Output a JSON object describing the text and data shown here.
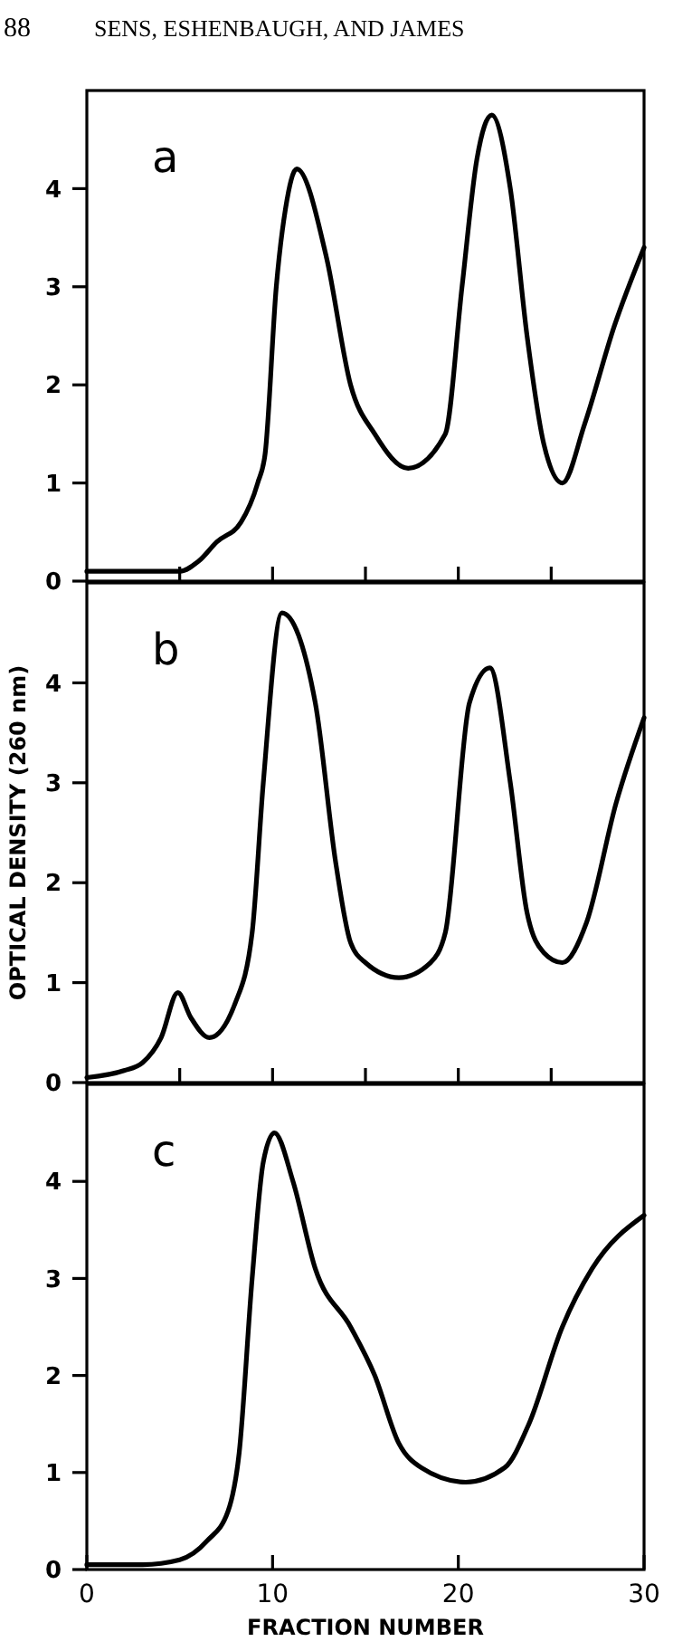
{
  "chart_data": [
    {
      "type": "line",
      "annotations": [
        "88",
        "SENS, ESHENBAUGH, AND JAMES",
        "a"
      ],
      "x": [
        0,
        3,
        5,
        6,
        7,
        8.3,
        9.2,
        9.6,
        10.2,
        10.7,
        11.3,
        12.9,
        14.2,
        15.5,
        17.3,
        19.3,
        20.2,
        21,
        21.8,
        22.8,
        23.7,
        24.6,
        25.6,
        26.8,
        28.4,
        30
      ],
      "values": [
        0.1,
        0.1,
        0.1,
        0.2,
        0.4,
        0.6,
        1,
        1.3,
        3,
        3.8,
        4.2,
        3.3,
        2,
        1.5,
        1.15,
        1.5,
        3,
        4.3,
        4.75,
        4,
        2.5,
        1.4,
        1,
        1.6,
        2.6,
        3.4
      ],
      "color": "#000000",
      "xlim": [
        0,
        30
      ],
      "xticks": [
        {
          "value": 5,
          "label": null
        },
        {
          "value": 10,
          "label": null
        },
        {
          "value": 15,
          "label": null
        },
        {
          "value": 20,
          "label": null
        },
        {
          "value": 25,
          "label": null
        }
      ],
      "ylim": [
        0,
        5
      ],
      "yticks": [
        0,
        1,
        2,
        3,
        4
      ],
      "tick_labels": "y"
    },
    {
      "type": "line",
      "ylabel": "OPTICAL DENSITY (260 nm)",
      "annotations": [
        "b"
      ],
      "x": [
        0,
        2,
        3,
        4,
        4.9,
        5.6,
        6.6,
        8,
        8.9,
        9.5,
        10.5,
        12.3,
        13.4,
        14.2,
        15,
        16.8,
        18.5,
        19.3,
        20.6,
        21.7,
        22.8,
        23.7,
        24.6,
        25.6,
        26.9,
        28.5,
        30
      ],
      "values": [
        0.05,
        0.12,
        0.2,
        0.45,
        0.9,
        0.65,
        0.45,
        0.8,
        1.5,
        3,
        4.7,
        3.8,
        2.2,
        1.4,
        1.2,
        1.05,
        1.2,
        1.5,
        3.8,
        4.15,
        3,
        1.7,
        1.3,
        1.2,
        1.6,
        2.8,
        3.65
      ],
      "color": "#000000",
      "xlim": [
        0,
        30
      ],
      "xticks": [
        {
          "value": 5,
          "label": null
        },
        {
          "value": 10,
          "label": null
        },
        {
          "value": 15,
          "label": null
        },
        {
          "value": 20,
          "label": null
        },
        {
          "value": 25,
          "label": null
        }
      ],
      "ylim": [
        0,
        5
      ],
      "yticks": [
        0,
        1,
        2,
        3,
        4
      ],
      "tick_labels": "y"
    },
    {
      "type": "line",
      "xlabel": "FRACTION NUMBER",
      "annotations": [
        "c"
      ],
      "x": [
        0,
        3,
        5,
        6.5,
        7.6,
        8.2,
        8.9,
        9.5,
        10.1,
        11.1,
        12.3,
        14.2,
        15.5,
        16.8,
        18,
        20.4,
        22.5,
        23.8,
        25.6,
        27.2,
        30
      ],
      "values": [
        0.05,
        0.05,
        0.1,
        0.3,
        0.6,
        1.2,
        3,
        4.2,
        4.5,
        4,
        3.1,
        2.5,
        2,
        1.3,
        1.05,
        0.9,
        1.05,
        1.5,
        2.5,
        3.1,
        3.65
      ],
      "color": "#000000",
      "xlim": [
        0,
        30
      ],
      "xticks": [
        0,
        10,
        20,
        30
      ],
      "ylim": [
        0,
        5
      ],
      "yticks": [
        0,
        1,
        2,
        3,
        4
      ]
    }
  ]
}
